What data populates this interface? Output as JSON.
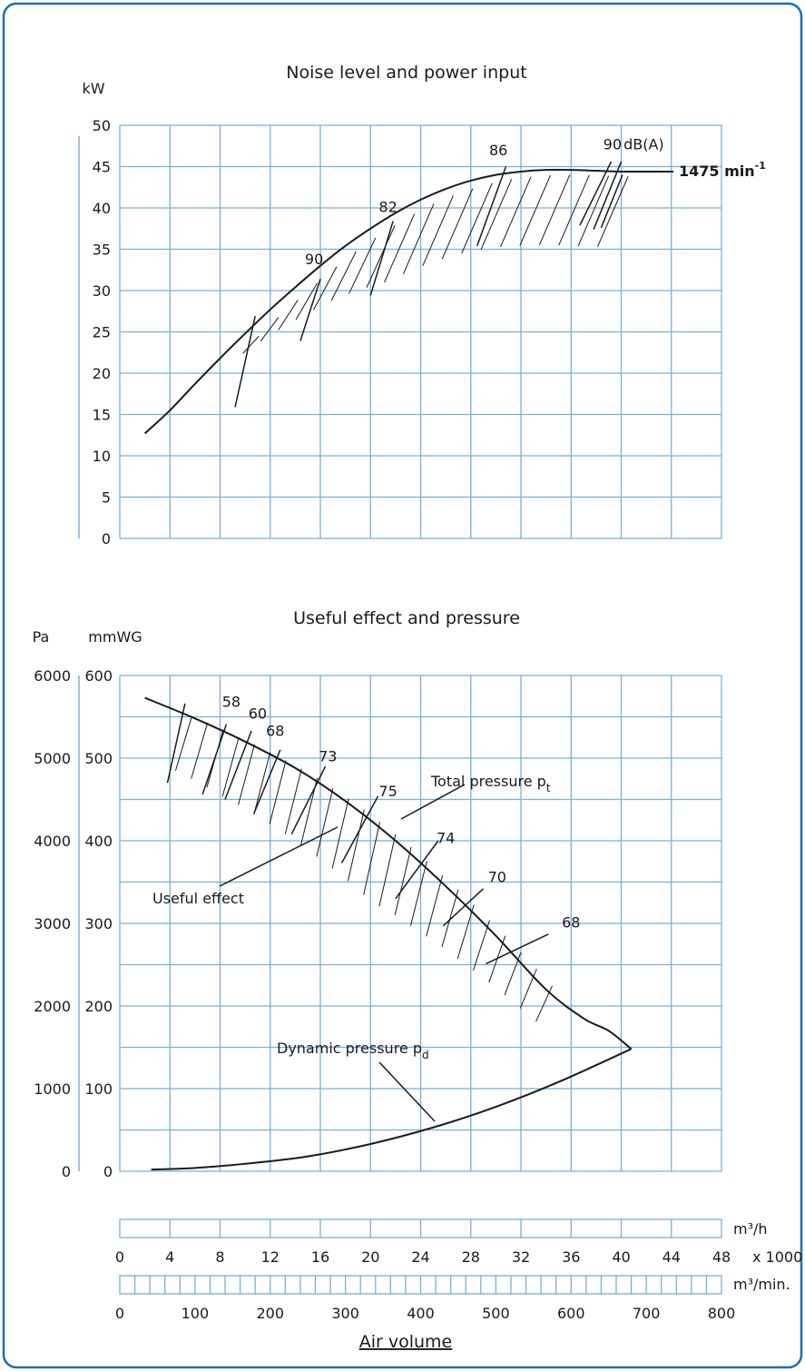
{
  "colors": {
    "frame": "#1a6fb5",
    "grid": "#7aaee0",
    "ink": "#1a1a1a"
  },
  "chart_data": [
    {
      "type": "line",
      "title": "Noise level and power input",
      "ylabel": "kW",
      "ylim": [
        0,
        50
      ],
      "y_ticks": [
        "0",
        "5",
        "10",
        "15",
        "20",
        "25",
        "30",
        "35",
        "40",
        "45",
        "50"
      ],
      "xlim": [
        0,
        48
      ],
      "grid": true,
      "series": [
        {
          "name": "1475 min",
          "name_sup": "-1",
          "x": [
            2,
            4,
            6,
            8,
            10,
            12,
            14,
            16,
            18,
            20,
            22,
            24,
            26,
            28,
            30,
            32,
            34,
            36,
            38,
            40,
            44
          ],
          "y": [
            12.7,
            15.5,
            18.7,
            21.8,
            24.8,
            27.7,
            30.4,
            33.0,
            35.4,
            37.5,
            39.4,
            41.0,
            42.3,
            43.3,
            44.0,
            44.4,
            44.6,
            44.6,
            44.5,
            44.4,
            44.4
          ]
        }
      ],
      "noise_labels": [
        {
          "text": "90",
          "x": 15.5,
          "y": 33.2
        },
        {
          "text": "82",
          "x": 21.4,
          "y": 39.5
        },
        {
          "text": "86",
          "x": 30.2,
          "y": 46.4
        },
        {
          "text": "90",
          "x": 39.3,
          "y": 47.1
        },
        {
          "text": "dB(A)",
          "x": 41.8,
          "y": 47.1
        }
      ]
    },
    {
      "type": "line",
      "title": "Useful effect and pressure",
      "ylabel_left": "Pa",
      "ylabel_right": "mmWG",
      "y_ticks_pa": [
        "0",
        "1000",
        "2000",
        "3000",
        "4000",
        "5000",
        "6000"
      ],
      "y_ticks_mmwg": [
        "0",
        "100",
        "200",
        "300",
        "400",
        "500",
        "600"
      ],
      "ylim": [
        0,
        6000
      ],
      "xlim": [
        0,
        48
      ],
      "grid": true,
      "series": [
        {
          "name": "Total pressure p",
          "name_sub": "t",
          "x": [
            2,
            6,
            10,
            14,
            18,
            22,
            26,
            30,
            34,
            37,
            39,
            40.8
          ],
          "y": [
            5730,
            5480,
            5200,
            4880,
            4480,
            4000,
            3450,
            2850,
            2200,
            1850,
            1700,
            1480
          ]
        },
        {
          "name": "Dynamic pressure p",
          "name_sub": "d",
          "x": [
            2.5,
            6,
            10,
            15,
            20,
            25,
            30,
            35,
            40.8
          ],
          "y": [
            20,
            40,
            90,
            180,
            330,
            530,
            780,
            1080,
            1480
          ]
        }
      ],
      "efficiency_labels": [
        "58",
        "60",
        "68",
        "73",
        "75",
        "74",
        "70",
        "68"
      ],
      "annotations": [
        "Useful effect"
      ]
    }
  ],
  "axis_volume": {
    "unit_h": "m³/h",
    "multiplier": "x 1000",
    "ticks_h": [
      "0",
      "4",
      "8",
      "12",
      "16",
      "20",
      "24",
      "28",
      "32",
      "36",
      "40",
      "44",
      "48"
    ],
    "unit_min": "m³/min.",
    "ticks_min": [
      "0",
      "100",
      "200",
      "300",
      "400",
      "500",
      "600",
      "700",
      "800"
    ],
    "label": "Air volume"
  }
}
